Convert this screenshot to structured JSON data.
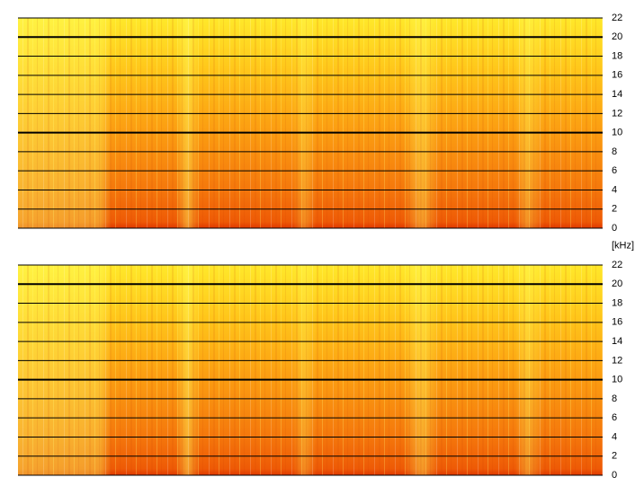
{
  "chart_data": [
    {
      "type": "spectrogram",
      "ylabel": "[kHz]",
      "ylim": [
        0,
        22
      ],
      "yticks": [
        0,
        2,
        4,
        6,
        8,
        10,
        12,
        14,
        16,
        18,
        20,
        22
      ],
      "major_ticks": [
        10,
        20
      ],
      "grid": true
    },
    {
      "type": "spectrogram",
      "ylim": [
        0,
        22
      ],
      "yticks": [
        0,
        2,
        4,
        6,
        8,
        10,
        12,
        14,
        16,
        18,
        20,
        22
      ],
      "major_ticks": [
        10,
        20
      ],
      "grid": true
    }
  ]
}
